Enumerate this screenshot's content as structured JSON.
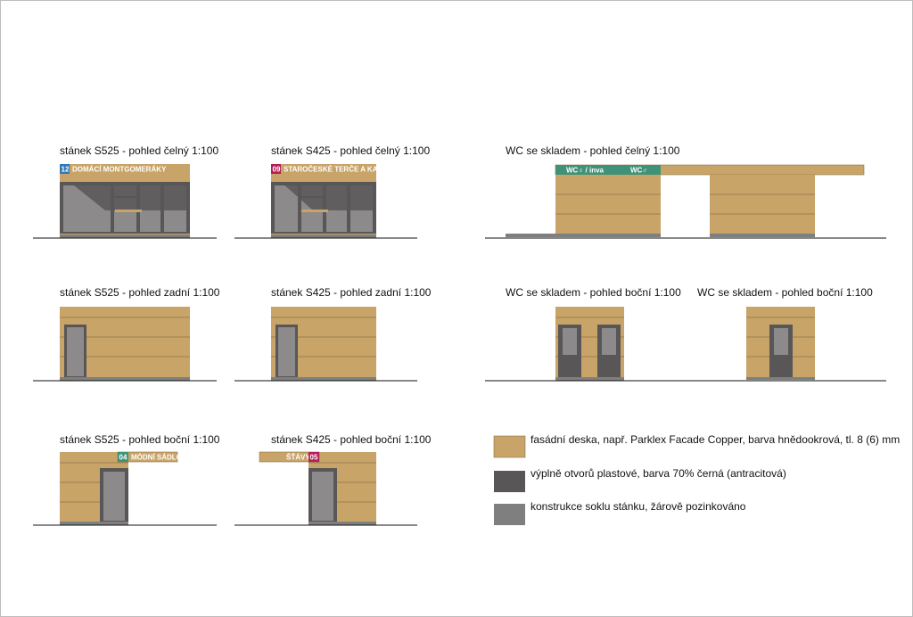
{
  "colors": {
    "facade": "#c8a468",
    "facade_line": "#8d734a",
    "opening": "#595657",
    "glass": "#8c8a8a",
    "plinth": "#7f7f7f",
    "sign_blue": "#2f79b6",
    "sign_red": "#b51f57",
    "sign_green": "#3f9277",
    "ground": "#111111"
  },
  "captions": {
    "s525_front": "stánek S525 - pohled čelný 1:100",
    "s425_front": "stánek S425 - pohled čelný 1:100",
    "wc_front": "WC se skladem - pohled čelný 1:100",
    "s525_back": "stánek S525 - pohled zadní 1:100",
    "s425_back": "stánek S425 - pohled zadní 1:100",
    "wc_side_1": "WC se skladem - pohled boční 1:100",
    "wc_side_2": "WC se skladem - pohled boční 1:100",
    "s525_side": "stánek S525 - pohled boční 1:100",
    "s425_side": "stánek S425 - pohled boční 1:100"
  },
  "signs": {
    "s525_front_num": "12",
    "s525_front_text": "DOMÁCÍ MONTGOMERÁKY",
    "s425_front_num": "09",
    "s425_front_text": "STAROČESKÉ TERČE A KAŠE",
    "wc_women": "WC♀ / inva",
    "wc_men": "WC♂",
    "s525_side_num": "04",
    "s525_side_text": "MÓDNÍ SÁDLO",
    "s425_side_text": "ŠŤÁVY",
    "s425_side_num": "05"
  },
  "legend": {
    "facade": "fasádní deska, např. Parklex Facade Copper, barva hnědookrová, tl. 8 (6) mm",
    "opening": "výplně otvorů plastové, barva 70% černá (antracitová)",
    "plinth": "konstrukce soklu stánku, žárově pozinkováno"
  }
}
